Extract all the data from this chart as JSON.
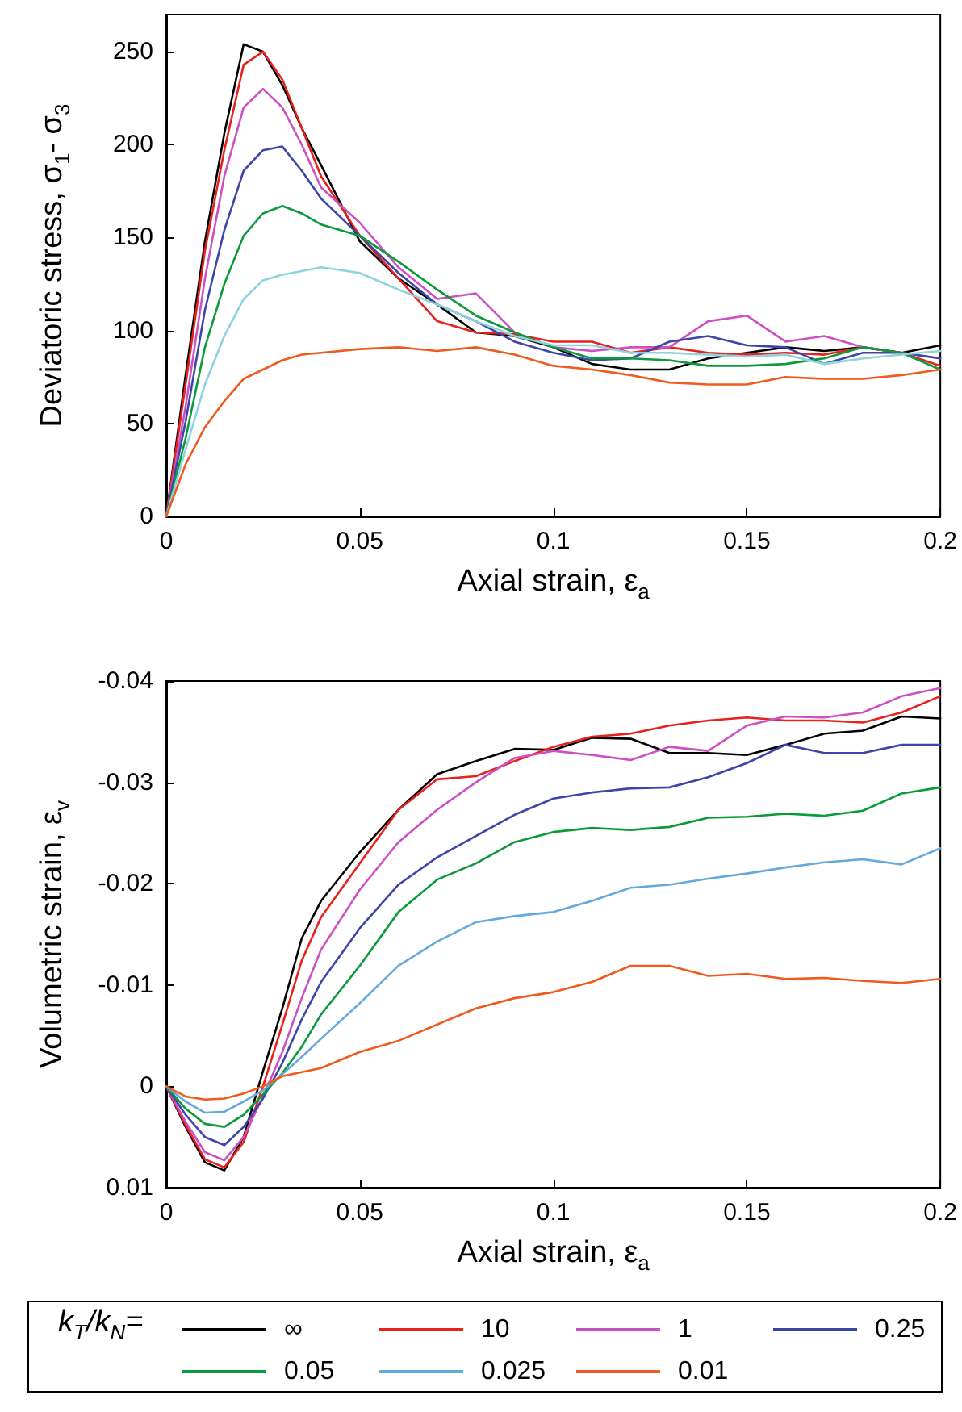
{
  "chart_data": [
    {
      "type": "line",
      "xlabel": "Axial strain, ε$_{a}$",
      "ylabel": "Deviatoric stress, σ$_{1}$- σ$_{3}$",
      "x": [
        0,
        0.005,
        0.01,
        0.015,
        0.02,
        0.025,
        0.03,
        0.035,
        0.04,
        0.05,
        0.06,
        0.07,
        0.08,
        0.09,
        0.1,
        0.11,
        0.12,
        0.13,
        0.14,
        0.15,
        0.16,
        0.17,
        0.18,
        0.19,
        0.2
      ],
      "xlim": [
        0,
        0.2
      ],
      "xticks": [
        0,
        0.05,
        0.1,
        0.15,
        0.2
      ],
      "ylim": [
        0,
        270
      ],
      "yticks": [
        0,
        50,
        100,
        150,
        200,
        250
      ],
      "grid": false,
      "line_style": "solid",
      "marker": "none",
      "series": [
        {
          "color": "#000000",
          "values": [
            0,
            76,
            148,
            206,
            254,
            250,
            232,
            209,
            189,
            148,
            128,
            114,
            99,
            97,
            91,
            82,
            79,
            79,
            85,
            88,
            91,
            89,
            91,
            88,
            92
          ]
        },
        {
          "color": "#e8211c",
          "values": [
            0,
            71,
            143,
            197,
            243,
            250,
            235,
            209,
            183,
            151,
            128,
            105,
            99,
            98,
            94,
            94,
            88,
            91,
            88,
            87,
            88,
            87,
            91,
            88,
            81
          ]
        },
        {
          "color": "#cc4fc4",
          "values": [
            0,
            59,
            128,
            183,
            220,
            230,
            220,
            200,
            177,
            158,
            134,
            117,
            120,
            99,
            91,
            89,
            91,
            91,
            105,
            108,
            94,
            97,
            91,
            88,
            85
          ]
        },
        {
          "color": "#3d46a8",
          "values": [
            0,
            51,
            111,
            154,
            186,
            197,
            199,
            186,
            171,
            151,
            131,
            114,
            105,
            94,
            88,
            84,
            85,
            94,
            97,
            92,
            91,
            82,
            88,
            88,
            85
          ]
        },
        {
          "color": "#0a9a3a",
          "values": [
            0,
            42,
            91,
            125,
            151,
            163,
            167,
            163,
            157,
            151,
            137,
            122,
            108,
            99,
            91,
            85,
            85,
            84,
            81,
            81,
            82,
            85,
            91,
            88,
            79
          ]
        },
        {
          "color": "#8dd3e0",
          "values": [
            0,
            36,
            71,
            97,
            117,
            127,
            130,
            132,
            134,
            131,
            122,
            114,
            105,
            97,
            92,
            92,
            88,
            88,
            87,
            86,
            87,
            82,
            85,
            87,
            89
          ]
        },
        {
          "color": "#f05a1e",
          "values": [
            0,
            28,
            48,
            62,
            74,
            79,
            84,
            87,
            88,
            90,
            91,
            89,
            91,
            87,
            81,
            79,
            76,
            72,
            71,
            71,
            75,
            74,
            74,
            76,
            79
          ]
        }
      ]
    },
    {
      "type": "line",
      "xlabel": "Axial strain, ε$_{a}$",
      "ylabel": "Volumetric strain, ε$_{v}$",
      "x": [
        0,
        0.005,
        0.01,
        0.015,
        0.02,
        0.025,
        0.03,
        0.035,
        0.04,
        0.05,
        0.06,
        0.07,
        0.08,
        0.09,
        0.1,
        0.11,
        0.12,
        0.13,
        0.14,
        0.15,
        0.16,
        0.17,
        0.18,
        0.19,
        0.2
      ],
      "xlim": [
        0,
        0.2
      ],
      "xticks": [
        0,
        0.05,
        0.1,
        0.15,
        0.2
      ],
      "ylim": [
        0.01,
        -0.04
      ],
      "yticks": [
        0.01,
        0,
        -0.01,
        -0.02,
        -0.03,
        -0.04
      ],
      "grid": false,
      "line_style": "solid",
      "marker": "none",
      "legend": "bottom",
      "legend_title": "k$_{T}$/k$_{N}$=",
      "series": [
        {
          "name": "∞",
          "color": "#000000",
          "values": [
            0,
            0.004,
            0.0075,
            0.0083,
            0.005,
            -0.0015,
            -0.0077,
            -0.0146,
            -0.0183,
            -0.0231,
            -0.0273,
            -0.0308,
            -0.0321,
            -0.0333,
            -0.0332,
            -0.0344,
            -0.0343,
            -0.0329,
            -0.0329,
            -0.0327,
            -0.0337,
            -0.0348,
            -0.0351,
            -0.0365,
            -0.0363
          ]
        },
        {
          "name": "10",
          "color": "#e8211c",
          "values": [
            0,
            0.0038,
            0.0072,
            0.008,
            0.0055,
            0,
            -0.0061,
            -0.0124,
            -0.0167,
            -0.022,
            -0.0273,
            -0.0303,
            -0.0306,
            -0.0321,
            -0.0335,
            -0.0345,
            -0.0348,
            -0.0356,
            -0.0361,
            -0.0364,
            -0.0361,
            -0.0361,
            -0.0359,
            -0.0369,
            -0.0385
          ]
        },
        {
          "name": "1",
          "color": "#cc4fc4",
          "values": [
            0,
            0.0035,
            0.0065,
            0.0073,
            0.005,
            0.001,
            -0.0034,
            -0.0087,
            -0.0135,
            -0.0194,
            -0.0241,
            -0.0273,
            -0.03,
            -0.0324,
            -0.0331,
            -0.0327,
            -0.0322,
            -0.0335,
            -0.0331,
            -0.0356,
            -0.0365,
            -0.0364,
            -0.0369,
            -0.0385,
            -0.0393
          ]
        },
        {
          "name": "0.25",
          "color": "#3d46a8",
          "values": [
            0,
            0.0028,
            0.005,
            0.0058,
            0.004,
            0.0012,
            -0.0023,
            -0.0066,
            -0.0103,
            -0.0156,
            -0.0199,
            -0.0226,
            -0.0247,
            -0.0268,
            -0.0284,
            -0.029,
            -0.0294,
            -0.0295,
            -0.0305,
            -0.0319,
            -0.0337,
            -0.0329,
            -0.0329,
            -0.0337,
            -0.0337
          ]
        },
        {
          "name": "0.05",
          "color": "#0a9a3a",
          "values": [
            0,
            0.0022,
            0.0037,
            0.004,
            0.0028,
            0.0008,
            -0.0013,
            -0.0039,
            -0.0071,
            -0.0119,
            -0.0172,
            -0.0204,
            -0.022,
            -0.0241,
            -0.0251,
            -0.0255,
            -0.0253,
            -0.0256,
            -0.0265,
            -0.0266,
            -0.0269,
            -0.0267,
            -0.0272,
            -0.0289,
            -0.0295
          ]
        },
        {
          "name": "0.025",
          "color": "#64a9dc",
          "values": [
            0,
            0.0015,
            0.0026,
            0.0025,
            0.0015,
            0.0004,
            -0.0012,
            -0.0029,
            -0.0047,
            -0.0082,
            -0.0119,
            -0.0143,
            -0.0162,
            -0.0168,
            -0.0172,
            -0.0183,
            -0.0196,
            -0.0199,
            -0.0205,
            -0.021,
            -0.0216,
            -0.0221,
            -0.0224,
            -0.0219,
            -0.0235
          ]
        },
        {
          "name": "0.01",
          "color": "#f05a1e",
          "values": [
            0,
            0.001,
            0.0013,
            0.0012,
            0.0007,
            0,
            -0.001,
            -0.0014,
            -0.0018,
            -0.0034,
            -0.0045,
            -0.0061,
            -0.0077,
            -0.0087,
            -0.0093,
            -0.0103,
            -0.0119,
            -0.0119,
            -0.0109,
            -0.0111,
            -0.0106,
            -0.0107,
            -0.0104,
            -0.0102,
            -0.0106
          ]
        }
      ]
    }
  ]
}
